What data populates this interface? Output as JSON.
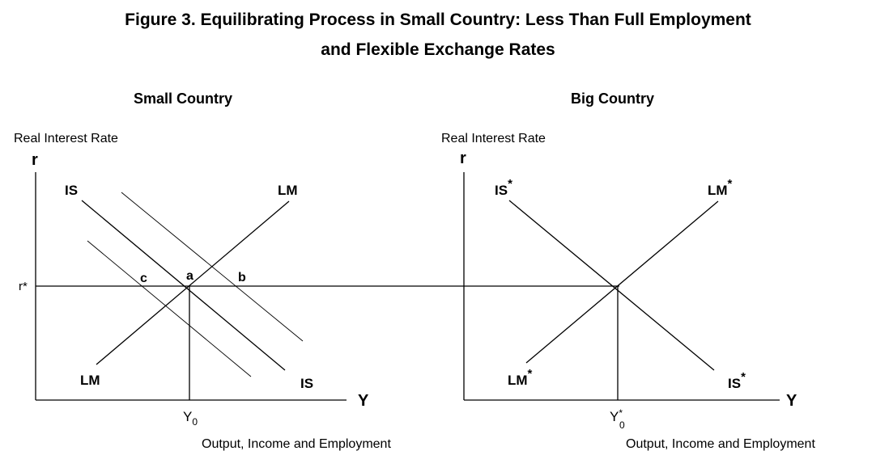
{
  "title": {
    "line1": "Figure 3.  Equilibrating Process in Small Country:  Less Than Full Employment",
    "line2": "and Flexible Exchange Rates"
  },
  "small_country": {
    "heading": "Small Country",
    "y_axis_label": "Real Interest Rate",
    "y_axis_symbol": "r",
    "x_axis_symbol": "Y",
    "x_axis_label": "Output, Income and Employment",
    "rate_label": "r*",
    "output_label": "Y",
    "output_sub": "0",
    "curves": {
      "is_top": "IS",
      "is_bottom": "IS",
      "lm_top": "LM",
      "lm_bottom": "LM"
    },
    "points": {
      "a": "a",
      "b": "b",
      "c": "c"
    }
  },
  "big_country": {
    "heading": "Big Country",
    "y_axis_label": "Real Interest Rate",
    "y_axis_symbol": "r",
    "x_axis_symbol": "Y",
    "x_axis_label": "Output, Income and Employment",
    "output_label": "Y",
    "output_sup": "*",
    "output_sub": "0",
    "curves": {
      "is_top": "IS",
      "is_bottom": "IS",
      "lm_top": "LM",
      "lm_bottom": "LM",
      "star": "*"
    }
  }
}
